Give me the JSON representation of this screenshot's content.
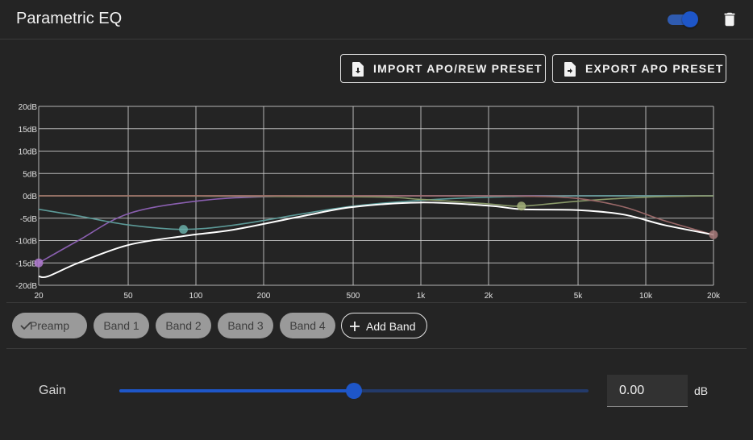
{
  "header": {
    "title": "Parametric EQ",
    "enabled": true
  },
  "actions": {
    "import_label": "IMPORT APO/REW PRESET",
    "export_label": "EXPORT APO PRESET"
  },
  "chart_data": {
    "type": "line",
    "x_scale": "log",
    "xlim": [
      20,
      20000
    ],
    "ylim": [
      -20,
      20
    ],
    "y_ticks": [
      20,
      15,
      10,
      5,
      0,
      -5,
      -10,
      -15,
      -20
    ],
    "y_tick_labels": [
      "20dB",
      "15dB",
      "10dB",
      "5dB",
      "0dB",
      "-5dB",
      "-10dB",
      "-15dB",
      "-20dB"
    ],
    "x_ticks": [
      20,
      50,
      100,
      200,
      500,
      1000,
      2000,
      5000,
      10000,
      20000
    ],
    "x_tick_labels": [
      "20",
      "50",
      "100",
      "200",
      "500",
      "1k",
      "2k",
      "5k",
      "10k",
      "20k"
    ],
    "grid": true,
    "series": [
      {
        "color": "#c8c86a",
        "x": [
          20,
          20000
        ],
        "y": [
          0,
          0
        ]
      },
      {
        "color": "#8a5fb0",
        "x": [
          20,
          30,
          50,
          100,
          200,
          500,
          1000,
          2000,
          5000,
          10000,
          20000
        ],
        "y": [
          -15,
          -10,
          -4,
          -1.2,
          -0.2,
          0,
          0,
          0,
          0,
          0,
          0
        ]
      },
      {
        "color": "#5c9a98",
        "x": [
          20,
          30,
          50,
          88,
          150,
          300,
          500,
          1000,
          2000,
          5000,
          10000,
          20000
        ],
        "y": [
          -3,
          -4.5,
          -6.5,
          -7.5,
          -6.5,
          -4,
          -2.3,
          -1,
          -0.3,
          0,
          0,
          0
        ]
      },
      {
        "color": "#8a9a6a",
        "x": [
          20,
          500,
          1000,
          2000,
          2800,
          5000,
          10000,
          20000
        ],
        "y": [
          0,
          -0.2,
          -0.8,
          -1.8,
          -2.3,
          -1.2,
          -0.3,
          0
        ]
      },
      {
        "color": "#9a6868",
        "x": [
          20,
          1000,
          3000,
          5000,
          8000,
          12000,
          20000
        ],
        "y": [
          0,
          0,
          -0.1,
          -0.6,
          -2.5,
          -5.5,
          -8.7
        ]
      },
      {
        "color": "#ffffff",
        "x": [
          20,
          22,
          30,
          50,
          88,
          150,
          300,
          500,
          1000,
          2000,
          2800,
          5000,
          8000,
          12000,
          20000
        ],
        "y": [
          -18,
          -18,
          -15,
          -11,
          -9,
          -7.5,
          -4.5,
          -2.5,
          -1.5,
          -2.2,
          -3,
          -3.2,
          -4.2,
          -6.5,
          -8.7
        ]
      }
    ],
    "handles": [
      {
        "color": "#b07ad0",
        "x": 20,
        "y": -15
      },
      {
        "color": "#6aaea8",
        "x": 88,
        "y": -7.5
      },
      {
        "color": "#a3b07a",
        "x": 2800,
        "y": -2.3
      },
      {
        "color": "#a87a7a",
        "x": 20000,
        "y": -8.7
      }
    ]
  },
  "bands": {
    "preamp": "Preamp",
    "band1": "Band 1",
    "band2": "Band 2",
    "band3": "Band 3",
    "band4": "Band 4",
    "add": "Add Band",
    "selected": "Preamp"
  },
  "gain": {
    "label": "Gain",
    "value": "0.00",
    "unit": "dB",
    "slider_fraction": 0.5
  }
}
